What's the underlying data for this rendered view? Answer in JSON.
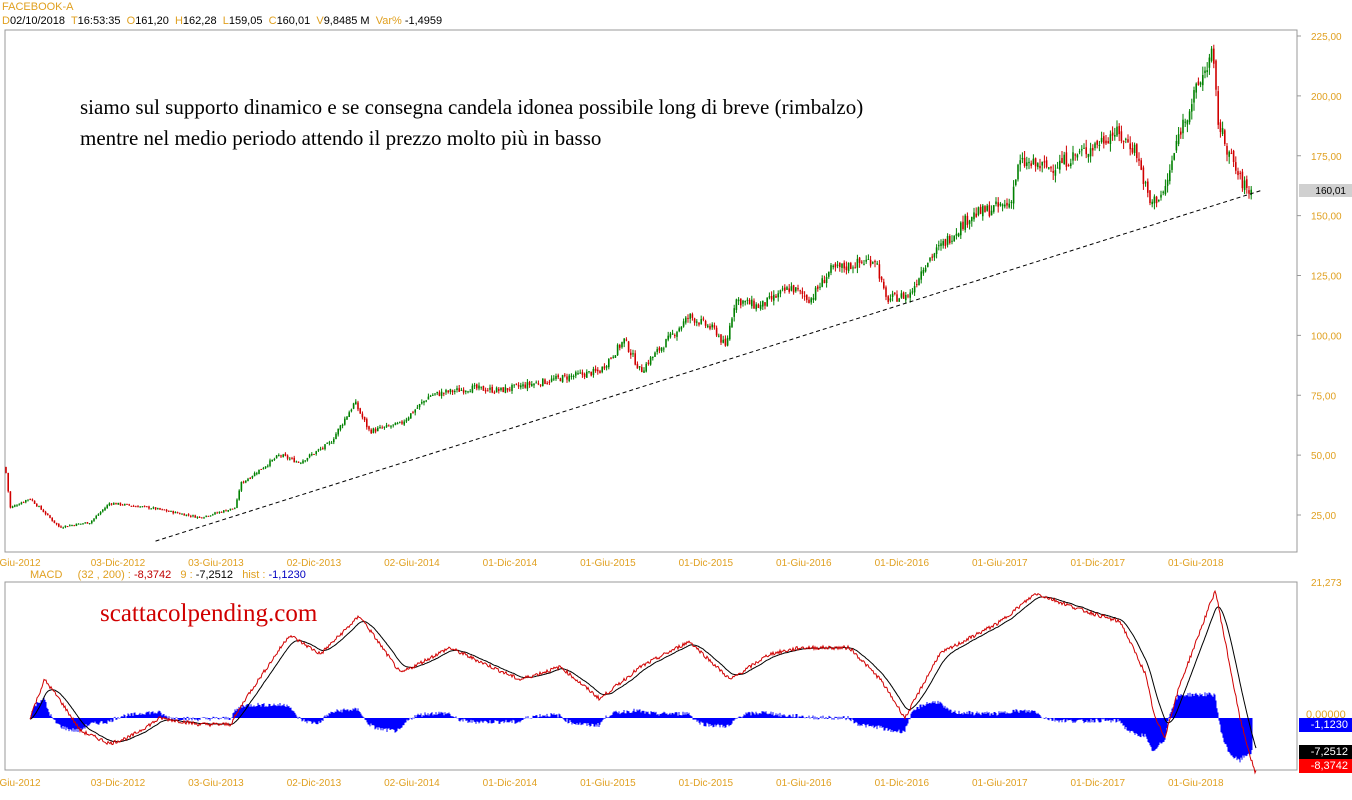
{
  "header": {
    "symbol": "FACEBOOK-A",
    "d_label": "D",
    "date": "02/10/2018",
    "t_label": "T",
    "time": "16:53:35",
    "o_label": "O",
    "open": "161,20",
    "h_label": "H",
    "high": "162,28",
    "l_label": "L",
    "low": "159,05",
    "c_label": "C",
    "close": "160,01",
    "v_label": "V",
    "volume": "9,8485 M",
    "var_label": "Var%",
    "var": "-1,4959"
  },
  "annotation_text": [
    "siamo sul supporto dinamico e se consegna candela idonea possibile long di breve (rimbalzo)",
    "mentre nel medio periodo attendo il prezzo molto più in basso"
  ],
  "watermark": "scattacolpending.com",
  "macd_header": {
    "name": "MACD",
    "params": "(32 , 200) :",
    "macd": "-8,3742",
    "sig_label": "9 :",
    "signal": "-7,2512",
    "hist_label": "hist :",
    "hist": "-1,1230"
  },
  "colors": {
    "up": "#008000",
    "down": "#d00000",
    "hist": "#0000ff",
    "axis_label": "#e0a020"
  },
  "chart_data": [
    {
      "type": "candlestick",
      "title": "FACEBOOK-A",
      "ylim": [
        15,
        225
      ],
      "y_ticks": [
        "225,00",
        "200,00",
        "175,00",
        "150,00",
        "125,00",
        "100,00",
        "75,00",
        "50,00",
        "25,00"
      ],
      "y_tick_values": [
        225,
        200,
        175,
        150,
        125,
        100,
        75,
        50,
        25
      ],
      "x_ticks": [
        "Giu-2012",
        "03-Dic-2012",
        "03-Giu-2013",
        "02-Dic-2013",
        "02-Giu-2014",
        "01-Dic-2014",
        "01-Giu-2015",
        "01-Dic-2015",
        "01-Giu-2016",
        "01-Dic-2016",
        "01-Giu-2017",
        "01-Dic-2017",
        "01-Giu-2018"
      ],
      "x_unit": "months since Jun-2012",
      "last_price_label": "160,01",
      "close_path": [
        [
          -0.9,
          45
        ],
        [
          -0.6,
          28
        ],
        [
          0.6,
          32
        ],
        [
          2.4,
          20
        ],
        [
          4.3,
          22
        ],
        [
          5.5,
          30
        ],
        [
          8,
          28
        ],
        [
          11,
          24
        ],
        [
          13.2,
          28
        ],
        [
          13.5,
          38
        ],
        [
          15.9,
          50
        ],
        [
          17.1,
          47
        ],
        [
          19,
          55
        ],
        [
          20.5,
          72
        ],
        [
          21.4,
          60
        ],
        [
          23.3,
          63
        ],
        [
          25.1,
          75
        ],
        [
          27.6,
          78
        ],
        [
          29.4,
          77
        ],
        [
          33,
          82
        ],
        [
          35.5,
          85
        ],
        [
          37,
          98
        ],
        [
          38,
          85
        ],
        [
          38.6,
          90
        ],
        [
          41,
          108
        ],
        [
          42.6,
          102
        ],
        [
          43.2,
          95
        ],
        [
          43.8,
          115
        ],
        [
          45.3,
          112
        ],
        [
          47.2,
          120
        ],
        [
          48.4,
          115
        ],
        [
          49.6,
          127
        ],
        [
          52.4,
          132
        ],
        [
          53,
          115
        ],
        [
          54.5,
          117
        ],
        [
          55.4,
          130
        ],
        [
          58.2,
          150
        ],
        [
          60.6,
          155
        ],
        [
          61.2,
          172
        ],
        [
          63.1,
          170
        ],
        [
          65.5,
          178
        ],
        [
          67,
          185
        ],
        [
          68.3,
          178
        ],
        [
          69.2,
          155
        ],
        [
          70.1,
          160
        ],
        [
          71,
          185
        ],
        [
          73,
          218
        ],
        [
          73.4,
          188
        ],
        [
          74.1,
          175
        ],
        [
          74.7,
          165
        ],
        [
          75.3,
          160
        ]
      ],
      "trendline": [
        [
          8.3,
          14.1
        ],
        [
          76.1,
          160.7
        ]
      ]
    },
    {
      "type": "line",
      "title": "MACD",
      "ylim": [
        -9,
        21.273
      ],
      "y_ticks": [
        "21,273",
        "0,00000"
      ],
      "series": [
        {
          "name": "MACD (32,200)",
          "color": "#d00000",
          "last": -8.3742
        },
        {
          "name": "Signal 9",
          "color": "#000000",
          "last": -7.2512
        },
        {
          "name": "hist",
          "color": "#0000ff",
          "last": -1.123
        }
      ],
      "macd_path": [
        [
          0.6,
          0
        ],
        [
          1.5,
          6
        ],
        [
          2.4,
          3
        ],
        [
          3.7,
          -2
        ],
        [
          5.5,
          -4
        ],
        [
          6.7,
          -3
        ],
        [
          8.6,
          0
        ],
        [
          11,
          -1
        ],
        [
          12.9,
          -1
        ],
        [
          13.8,
          3
        ],
        [
          16.5,
          13
        ],
        [
          18.4,
          10
        ],
        [
          20.8,
          16
        ],
        [
          23.3,
          7
        ],
        [
          26.3,
          11
        ],
        [
          30.6,
          6
        ],
        [
          33.1,
          8
        ],
        [
          35.5,
          3
        ],
        [
          38,
          8
        ],
        [
          41,
          12
        ],
        [
          43.5,
          6
        ],
        [
          45.9,
          10
        ],
        [
          47.8,
          11
        ],
        [
          50.8,
          11
        ],
        [
          52.7,
          6
        ],
        [
          54.2,
          0
        ],
        [
          56.3,
          10
        ],
        [
          60,
          15
        ],
        [
          62.2,
          19.5
        ],
        [
          64.9,
          17
        ],
        [
          67.4,
          15
        ],
        [
          68.9,
          7
        ],
        [
          69.5,
          0
        ],
        [
          70.1,
          -3
        ],
        [
          71,
          5
        ],
        [
          73.2,
          20
        ],
        [
          74.7,
          0
        ],
        [
          75.6,
          -8.4
        ]
      ]
    }
  ]
}
